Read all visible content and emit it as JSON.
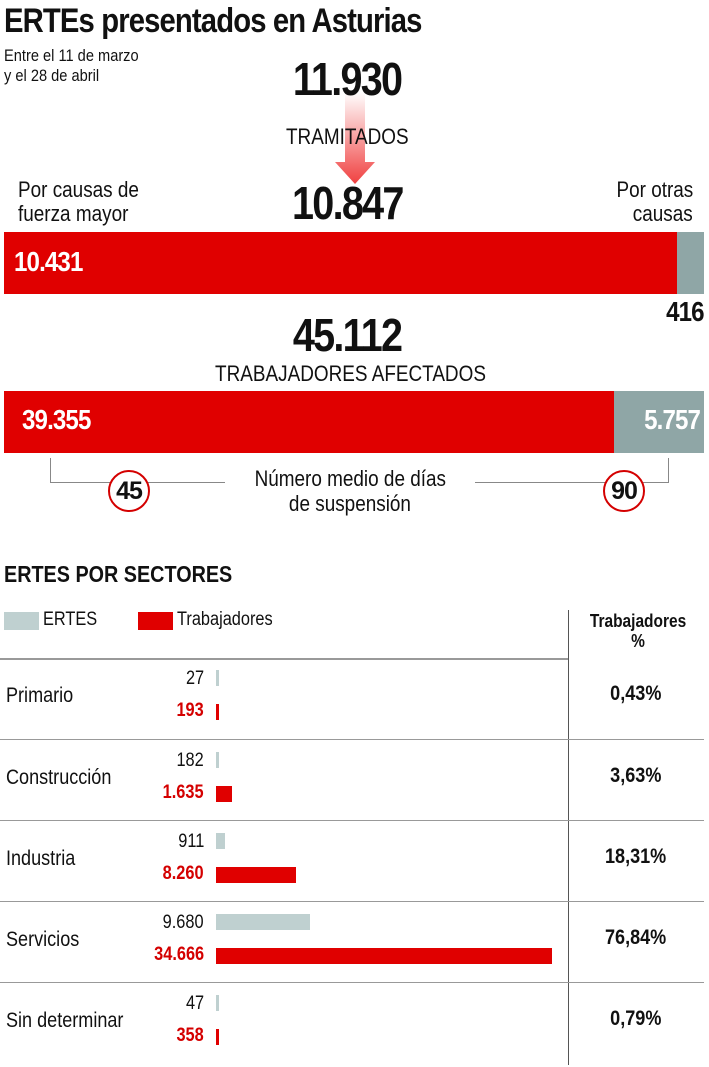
{
  "title": "ERTEs presentados en Asturias",
  "subtitle_lines": [
    "Entre el 11 de marzo",
    "y el 28 de abril"
  ],
  "colors": {
    "red": "#e00000",
    "gray": "#8fa6a6",
    "light_gray": "#bfd0d0",
    "circle_border": "#d40000"
  },
  "summary": {
    "presented": "11.930",
    "tramitados_label": "TRAMITADOS",
    "tramitados": "10.847",
    "fuerza_mayor_label_lines": [
      "Por causas de",
      "fuerza mayor"
    ],
    "otras_label_lines": [
      "Por otras",
      "causas"
    ],
    "fuerza_mayor": "10.431",
    "otras": "416",
    "workers_total": "45.112",
    "workers_label": "TRABAJADORES AFECTADOS",
    "workers_fuerza_mayor": "39.355",
    "workers_otras": "5.757",
    "days_label_lines": [
      "Número medio de días",
      "de suspensión"
    ],
    "days_fuerza_mayor": "45",
    "days_otras": "90"
  },
  "chart_data": {
    "type": "bar",
    "title": "ERTES POR SECTORES",
    "legend": [
      "ERTES",
      "Trabajadores"
    ],
    "pct_header_lines": [
      "Trabajadores",
      "%"
    ],
    "categories": [
      "Primario",
      "Construcción",
      "Industria",
      "Servicios",
      "Sin determinar"
    ],
    "series": [
      {
        "name": "ERTES",
        "values": [
          27,
          182,
          911,
          9680,
          47
        ],
        "labels": [
          "27",
          "182",
          "911",
          "9.680",
          "47"
        ]
      },
      {
        "name": "Trabajadores",
        "values": [
          193,
          1635,
          8260,
          34666,
          358
        ],
        "labels": [
          "193",
          "1.635",
          "8.260",
          "34.666",
          "358"
        ]
      }
    ],
    "pct_labels": [
      "0,43%",
      "3,63%",
      "18,31%",
      "76,84%",
      "0,79%"
    ]
  }
}
